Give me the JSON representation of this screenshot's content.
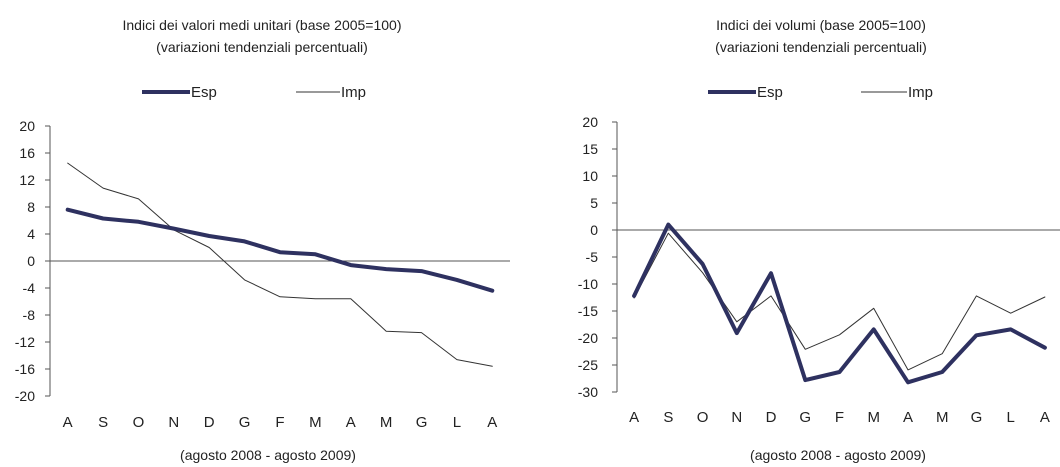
{
  "chart_data": [
    {
      "type": "line",
      "title": "Indici dei valori medi unitari (base 2005=100)",
      "subtitle": "(variazioni tendenziali percentuali)",
      "xlabel": "(agosto 2008 - agosto 2009)",
      "ylabel": "",
      "categories": [
        "A",
        "S",
        "O",
        "N",
        "D",
        "G",
        "F",
        "M",
        "A",
        "M",
        "G",
        "L",
        "A"
      ],
      "ylim": [
        -20,
        20
      ],
      "yticks": [
        -20,
        -16,
        -12,
        -8,
        -4,
        0,
        4,
        8,
        12,
        16,
        20
      ],
      "grid": false,
      "legend": "top-center",
      "series": [
        {
          "name": "Esp",
          "color": "#2e3160",
          "values": [
            7.6,
            6.3,
            5.8,
            4.8,
            3.7,
            2.9,
            1.3,
            1.0,
            -0.6,
            -1.2,
            -1.5,
            -2.8,
            -4.4
          ]
        },
        {
          "name": "Imp",
          "color": "#333333",
          "values": [
            14.5,
            10.8,
            9.2,
            4.6,
            2.0,
            -2.8,
            -5.3,
            -5.6,
            -5.6,
            -10.4,
            -10.6,
            -14.6,
            -15.6
          ]
        }
      ]
    },
    {
      "type": "line",
      "title": "Indici dei volumi (base 2005=100)",
      "subtitle": "(variazioni tendenziali percentuali)",
      "xlabel": "(agosto 2008 - agosto 2009)",
      "ylabel": "",
      "categories": [
        "A",
        "S",
        "O",
        "N",
        "D",
        "G",
        "F",
        "M",
        "A",
        "M",
        "G",
        "L",
        "A"
      ],
      "ylim": [
        -30,
        20
      ],
      "yticks": [
        -30,
        -25,
        -20,
        -15,
        -10,
        -5,
        0,
        5,
        10,
        15,
        20
      ],
      "grid": false,
      "legend": "top-center",
      "series": [
        {
          "name": "Esp",
          "color": "#2e3160",
          "values": [
            -12.2,
            1.0,
            -6.3,
            -19.1,
            -8.0,
            -27.8,
            -26.3,
            -18.4,
            -28.2,
            -26.3,
            -19.5,
            -18.4,
            -21.8
          ]
        },
        {
          "name": "Imp",
          "color": "#333333",
          "values": [
            -12.6,
            -0.6,
            -7.9,
            -17.0,
            -12.2,
            -22.1,
            -19.4,
            -14.5,
            -25.9,
            -22.9,
            -12.2,
            -15.4,
            -12.4
          ]
        }
      ]
    }
  ]
}
